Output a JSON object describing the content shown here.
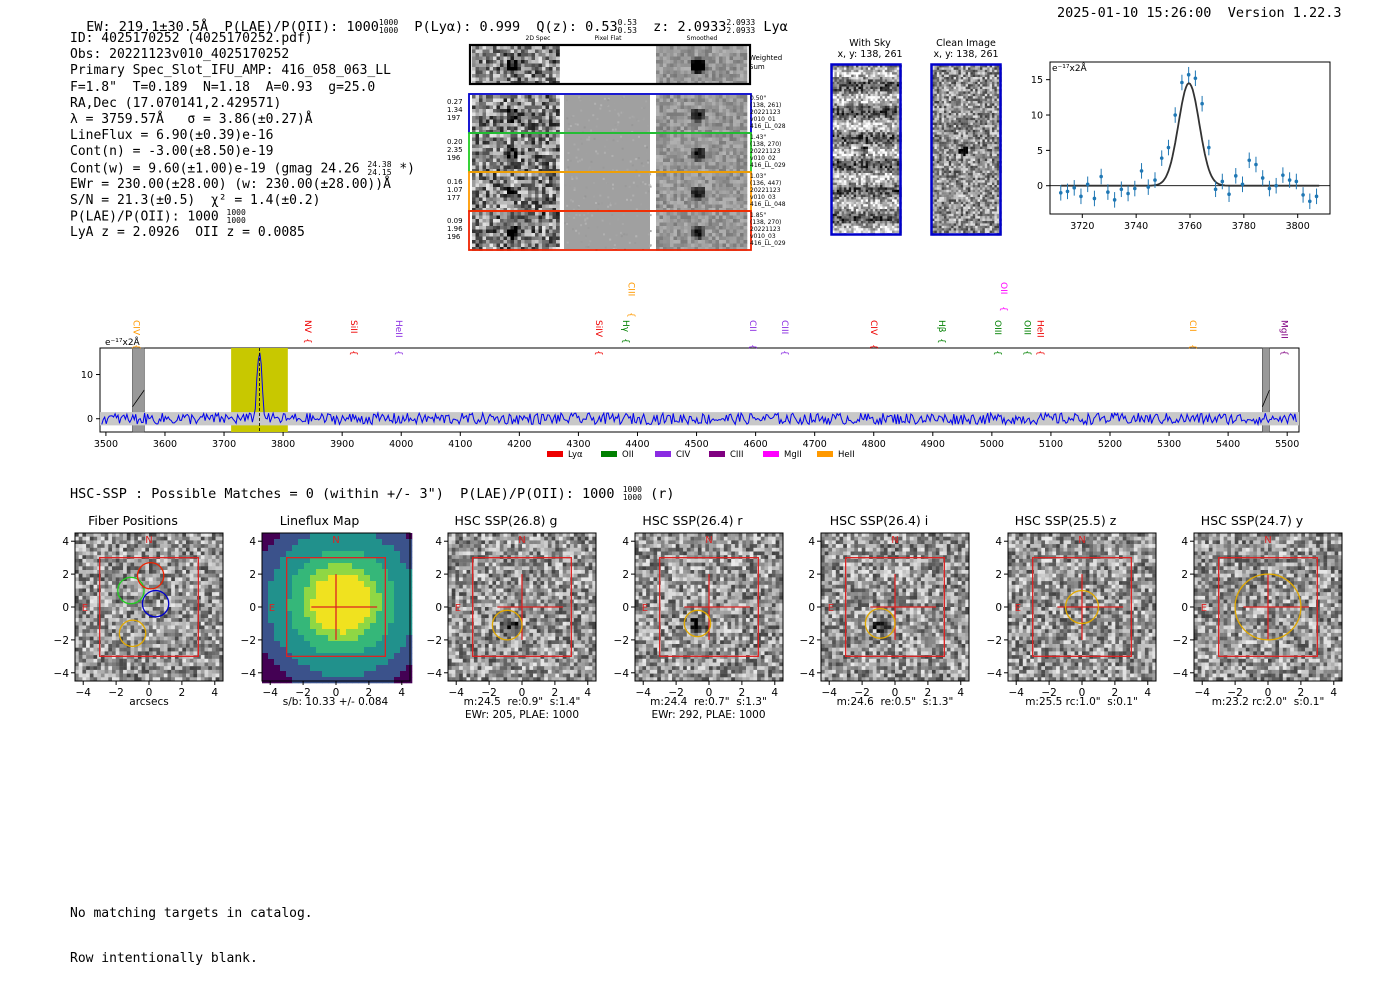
{
  "header": {
    "ew": "EW: 219.1±30.5Å",
    "plae_label": "P(LAE)/P(OII): 1000",
    "plae_hi": "1000",
    "plae_lo": "1000",
    "plya": "P(Lyα): 0.999",
    "qz": "Q(z): 0.53",
    "qz_hi": "0.53",
    "qz_lo": "0.53",
    "z": "z: 2.0933",
    "z_hi": "2.0933",
    "z_lo": "2.0933",
    "line_id": "Lyα",
    "timestamp": "2025-01-10 15:26:00",
    "version": "Version 1.22.3"
  },
  "info": {
    "id": "ID: 4025170252 (4025170252.pdf)",
    "obs": "Obs: 20221123v010_4025170252",
    "primary": "Primary Spec_Slot_IFU_AMP: 416_058_063_LL",
    "fiber": "F=1.8\"  T=0.189  N=1.18  A=0.93  g=25.0",
    "radec": "RA,Dec (17.070141,2.429571)",
    "lambda": "λ = 3759.57Å   σ = 3.86(±0.27)Å",
    "lineflux": "LineFlux = 6.90(±0.39)e-16",
    "contn": "Cont(n) = -3.00(±8.50)e-19",
    "contw": "Cont(w) = 9.60(±1.00)e-19 (gmag 24.26",
    "gmag_hi": "24.38",
    "gmag_lo": "24.15",
    "contw_end": "*)",
    "ewr": "EWr = 230.00(±28.00) (w: 230.00(±28.00))Å",
    "sn": "S/N = 21.3(±0.5)  χ² = 1.4(±0.2)",
    "plae": "P(LAE)/P(OII): 1000",
    "plae_hi": "1000",
    "plae_lo": "1000",
    "lya": "LyA z = 2.0926  OII z = 0.0085"
  },
  "cutouts": {
    "col_titles": [
      "2D Spec",
      "Pixel Flat",
      "Smoothed"
    ],
    "weighted_label": "Weighted Sum",
    "rows": [
      {
        "stats": [
          "0.27",
          "1.34",
          "197"
        ],
        "color": "#0000cc",
        "meta": [
          "0.50\"",
          "(138, 261)",
          "20221123",
          "v010_01",
          "416_LL_028"
        ]
      },
      {
        "stats": [
          "0.20",
          "2.35",
          "196"
        ],
        "color": "#22cc22",
        "meta": [
          "1.43\"",
          "(138, 270)",
          "20221123",
          "v010_02",
          "416_LL_029"
        ]
      },
      {
        "stats": [
          "0.16",
          "1.07",
          "177"
        ],
        "color": "#ff9900",
        "meta": [
          "1.03\"",
          "(136, 447)",
          "20221123",
          "v010_03",
          "416_LL_048"
        ]
      },
      {
        "stats": [
          "0.09",
          "1.96",
          "196"
        ],
        "color": "#ee2200",
        "meta": [
          "1.85\"",
          "(138, 270)",
          "20221123",
          "v010_03",
          "416_LL_029"
        ]
      }
    ]
  },
  "sky": {
    "with_sky_title": "With Sky",
    "with_sky_xy": "x, y: 138, 261",
    "clean_title": "Clean Image",
    "clean_xy": "x, y: 138, 261"
  },
  "colors": {
    "data": "#1f77b4",
    "fit": "#333333",
    "spectrum": "#0000ee",
    "highlight": "#c8c800",
    "frame_red": "#dd2222",
    "circle_gold": "#e0a800"
  },
  "fit_plot": {
    "units": "e⁻¹⁷x2Å",
    "x_ticks": [
      "3720",
      "3740",
      "3760",
      "3780",
      "3800"
    ],
    "y_ticks": [
      "15",
      "10",
      "5",
      "0"
    ],
    "chart_data": {
      "type": "scatter",
      "xlim": [
        3708,
        3812
      ],
      "ylim": [
        -4,
        17.5
      ],
      "x": [
        3712,
        3714.5,
        3717,
        3719.5,
        3722,
        3724.5,
        3727,
        3729.5,
        3732,
        3734.5,
        3737,
        3739.5,
        3742,
        3744.5,
        3747,
        3749.5,
        3752,
        3754.5,
        3757,
        3759.5,
        3762,
        3764.5,
        3767,
        3769.5,
        3772,
        3774.5,
        3777,
        3779.5,
        3782,
        3784.5,
        3787,
        3789.5,
        3792,
        3794.5,
        3797,
        3799.5,
        3802,
        3804.5,
        3807
      ],
      "y": [
        -1,
        -0.8,
        -0.3,
        -1.5,
        0.2,
        -1.8,
        1.3,
        -0.9,
        -2,
        -0.5,
        -1.1,
        -0.4,
        2.1,
        -0.2,
        0.8,
        3.9,
        5.4,
        10,
        14.6,
        15.7,
        15.2,
        11.6,
        5.4,
        -0.5,
        0.6,
        -1.2,
        1.4,
        0.2,
        3.6,
        3,
        1.1,
        -0.4,
        0,
        1.5,
        0.8,
        0.6,
        -1.3,
        -2.2,
        -1.5
      ],
      "fit_center": 3759.6,
      "fit_sigma": 3.86,
      "fit_peak": 14.5
    }
  },
  "lines": [
    {
      "label": "CIV",
      "wave": 3542,
      "color": "#ff9900",
      "row": 2
    },
    {
      "label": "NV",
      "wave": 3832,
      "color": "#ee0000",
      "row": 2
    },
    {
      "label": "SiII",
      "wave": 3910,
      "color": "#ee0000",
      "row": 2
    },
    {
      "label": "HeII",
      "wave": 3986,
      "color": "#8a2be2",
      "row": 2
    },
    {
      "label": "CIII",
      "wave": 4380,
      "color": "#ff9900",
      "row": 0
    },
    {
      "label": "SiIV",
      "wave": 4325,
      "color": "#ee0000",
      "row": 2
    },
    {
      "label": "Hγ",
      "wave": 4370,
      "color": "#008000",
      "row": 2
    },
    {
      "label": "CII",
      "wave": 4585,
      "color": "#8a2be2",
      "row": 2
    },
    {
      "label": "CIII",
      "wave": 4640,
      "color": "#8a2be2",
      "row": 2
    },
    {
      "label": "CIV",
      "wave": 4790,
      "color": "#ee0000",
      "row": 2
    },
    {
      "label": "Hβ",
      "wave": 4905,
      "color": "#008000",
      "row": 2
    },
    {
      "label": "OII",
      "wave": 5010,
      "color": "#ff00ff",
      "row": 0
    },
    {
      "label": "OIII",
      "wave": 5000,
      "color": "#008000",
      "row": 2
    },
    {
      "label": "OIII",
      "wave": 5050,
      "color": "#008000",
      "row": 2
    },
    {
      "label": "HeII",
      "wave": 5072,
      "color": "#ee0000",
      "row": 2
    },
    {
      "label": "CII",
      "wave": 5330,
      "color": "#ff9900",
      "row": 2
    },
    {
      "label": "MgII",
      "wave": 5485,
      "color": "#800080",
      "row": 2
    }
  ],
  "spectrum": {
    "units": "e⁻¹⁷x2Å",
    "x_ticks": [
      "3500",
      "3600",
      "3700",
      "3800",
      "3900",
      "4000",
      "4100",
      "4200",
      "4300",
      "4400",
      "4500",
      "4600",
      "4700",
      "4800",
      "4900",
      "5000",
      "5100",
      "5200",
      "5300",
      "5400",
      "5500"
    ],
    "y_ticks": [
      "10",
      "0"
    ],
    "legend": [
      {
        "label": "Lyα",
        "color": "#ee0000"
      },
      {
        "label": "OII",
        "color": "#008000"
      },
      {
        "label": "CIV",
        "color": "#8a2be2"
      },
      {
        "label": "CIII",
        "color": "#800080"
      },
      {
        "label": "MgII",
        "color": "#ff00ff"
      },
      {
        "label": "HeII",
        "color": "#ff9900"
      }
    ],
    "chart_data": {
      "type": "line",
      "xlim": [
        3490,
        5520
      ],
      "ylim": [
        -3,
        16
      ],
      "peak_wave": 3760,
      "peak_flux": 15.5,
      "highlight_range": [
        3712,
        3808
      ],
      "masked_ranges": [
        [
          3545,
          3565
        ],
        [
          5458,
          5470
        ]
      ]
    }
  },
  "hsc": {
    "summary": "HSC-SSP : Possible Matches = 0 (within +/- 3\")  P(LAE)/P(OII): 1000",
    "summary_hi": "1000",
    "summary_lo": "1000",
    "summary_end": "(r)",
    "axis_ticks": [
      "4",
      "2",
      "0",
      "−2",
      "−4"
    ],
    "x_ticks": [
      "−4",
      "−2",
      "0",
      "2",
      "4"
    ],
    "panels": [
      {
        "title": "Fiber Positions",
        "cap1": "arcsecs",
        "cap2": ""
      },
      {
        "title": "Lineflux Map",
        "cap1": "s/b: 10.33 +/- 0.084",
        "cap2": ""
      },
      {
        "title": "HSC SSP(26.8) g",
        "cap1": "m:24.5  re:0.9\"  s:1.4\"",
        "cap2": "EWr: 205, PLAE: 1000"
      },
      {
        "title": "HSC SSP(26.4) r",
        "cap1": "m:24.4  re:0.7\"  s:1.3\"",
        "cap2": "EWr: 292, PLAE: 1000"
      },
      {
        "title": "HSC SSP(26.4) i",
        "cap1": "m:24.6  re:0.5\"  s:1.3\"",
        "cap2": ""
      },
      {
        "title": "HSC SSP(25.5) z",
        "cap1": "m:25.5 rc:1.0\"  s:0.1\"",
        "cap2": ""
      },
      {
        "title": "HSC SSP(24.7) y",
        "cap1": "m:23.2 rc:2.0\"  s:0.1\"",
        "cap2": ""
      }
    ],
    "n_label": "N",
    "e_label": "E"
  },
  "footer": {
    "line1": "No matching targets in catalog.",
    "line2": "Row intentionally blank."
  }
}
